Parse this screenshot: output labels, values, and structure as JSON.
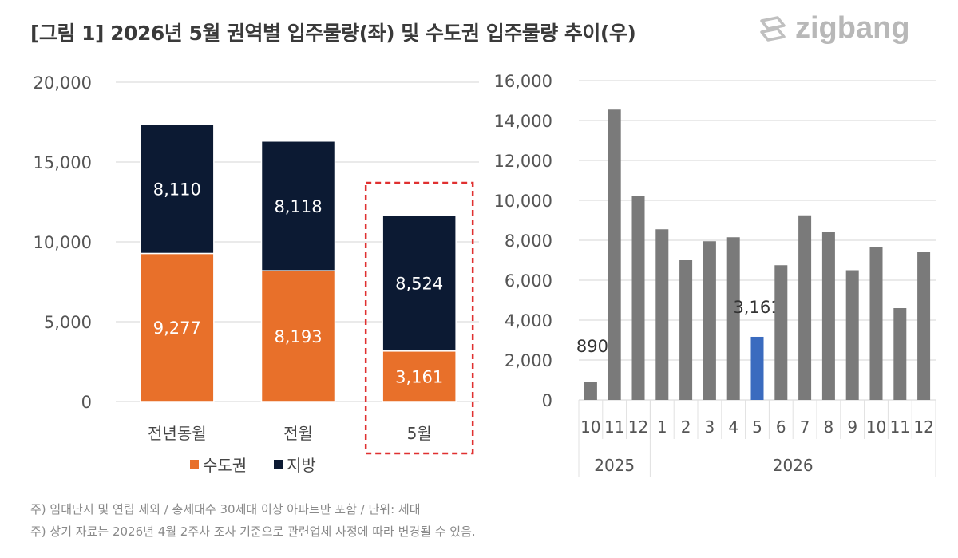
{
  "title": "[그림 1] 2026년 5월 권역별 입주물량(좌) 및 수도권 입주물량 추이(우)",
  "logo_text": "zigbang",
  "notes": [
    "주) 임대단지 및 연립 제외 / 총세대수 30세대 이상 아파트만 포함 / 단위: 세대",
    "주) 상기 자료는 2026년 4월 2주차 조사 기준으로 관련업체 사정에 따라 변경될 수 있음."
  ],
  "chart_data": [
    {
      "type": "stacked-bar",
      "categories": [
        "전년동월",
        "전월",
        "5월"
      ],
      "series": [
        {
          "name": "수도권",
          "values": [
            9277,
            8193,
            3161
          ],
          "color": "#e8702a"
        },
        {
          "name": "지방",
          "values": [
            8110,
            8118,
            8524
          ],
          "color": "#0c1a33"
        }
      ],
      "data_labels": {
        "수도권": [
          "9,277",
          "8,193",
          "3,161"
        ],
        "지방": [
          "8,110",
          "8,118",
          "8,524"
        ]
      },
      "ylim": [
        0,
        20000
      ],
      "yticks": [
        "0",
        "5,000",
        "10,000",
        "15,000",
        "20,000"
      ],
      "grid": true,
      "legend": "bottom",
      "highlight_category": "5월",
      "highlight_color": "#e03030"
    },
    {
      "type": "bar",
      "categories": [
        "10",
        "11",
        "12",
        "1",
        "2",
        "3",
        "4",
        "5",
        "6",
        "7",
        "8",
        "9",
        "10",
        "11",
        "12"
      ],
      "groups": [
        {
          "label": "2025",
          "count": 3
        },
        {
          "label": "2026",
          "count": 12
        }
      ],
      "values": [
        890,
        14550,
        10200,
        8550,
        7000,
        7950,
        8150,
        3161,
        6750,
        9250,
        8400,
        6500,
        7650,
        4600,
        7400
      ],
      "data_labels": {
        "0": "890",
        "7": "3,161"
      },
      "highlight_index": 7,
      "bar_color": "#7a7a7a",
      "highlight_color": "#3a6bbf",
      "ylim": [
        0,
        16000
      ],
      "yticks": [
        "0",
        "2,000",
        "4,000",
        "6,000",
        "8,000",
        "10,000",
        "12,000",
        "14,000",
        "16,000"
      ],
      "grid": true
    }
  ]
}
